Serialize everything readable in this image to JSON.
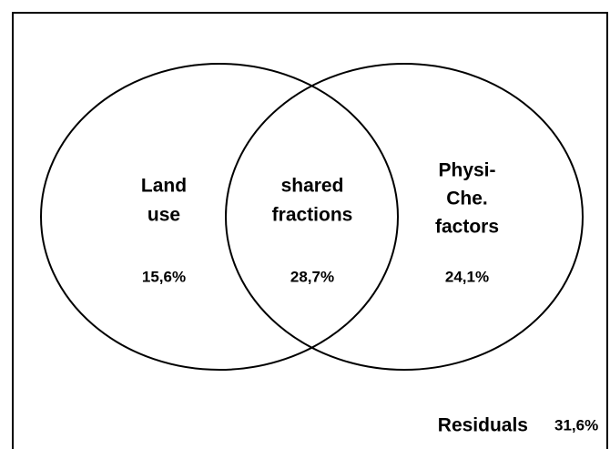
{
  "sets": [
    {
      "label": [
        "Land",
        "use"
      ],
      "value": "15,6%"
    },
    {
      "label": [
        "shared",
        "fractions"
      ],
      "value": "28,7%"
    },
    {
      "label": [
        "Physi-",
        "Che.",
        "factors"
      ],
      "value": "24,1%"
    }
  ],
  "residuals": {
    "label": "Residuals",
    "value": "31,6%"
  }
}
